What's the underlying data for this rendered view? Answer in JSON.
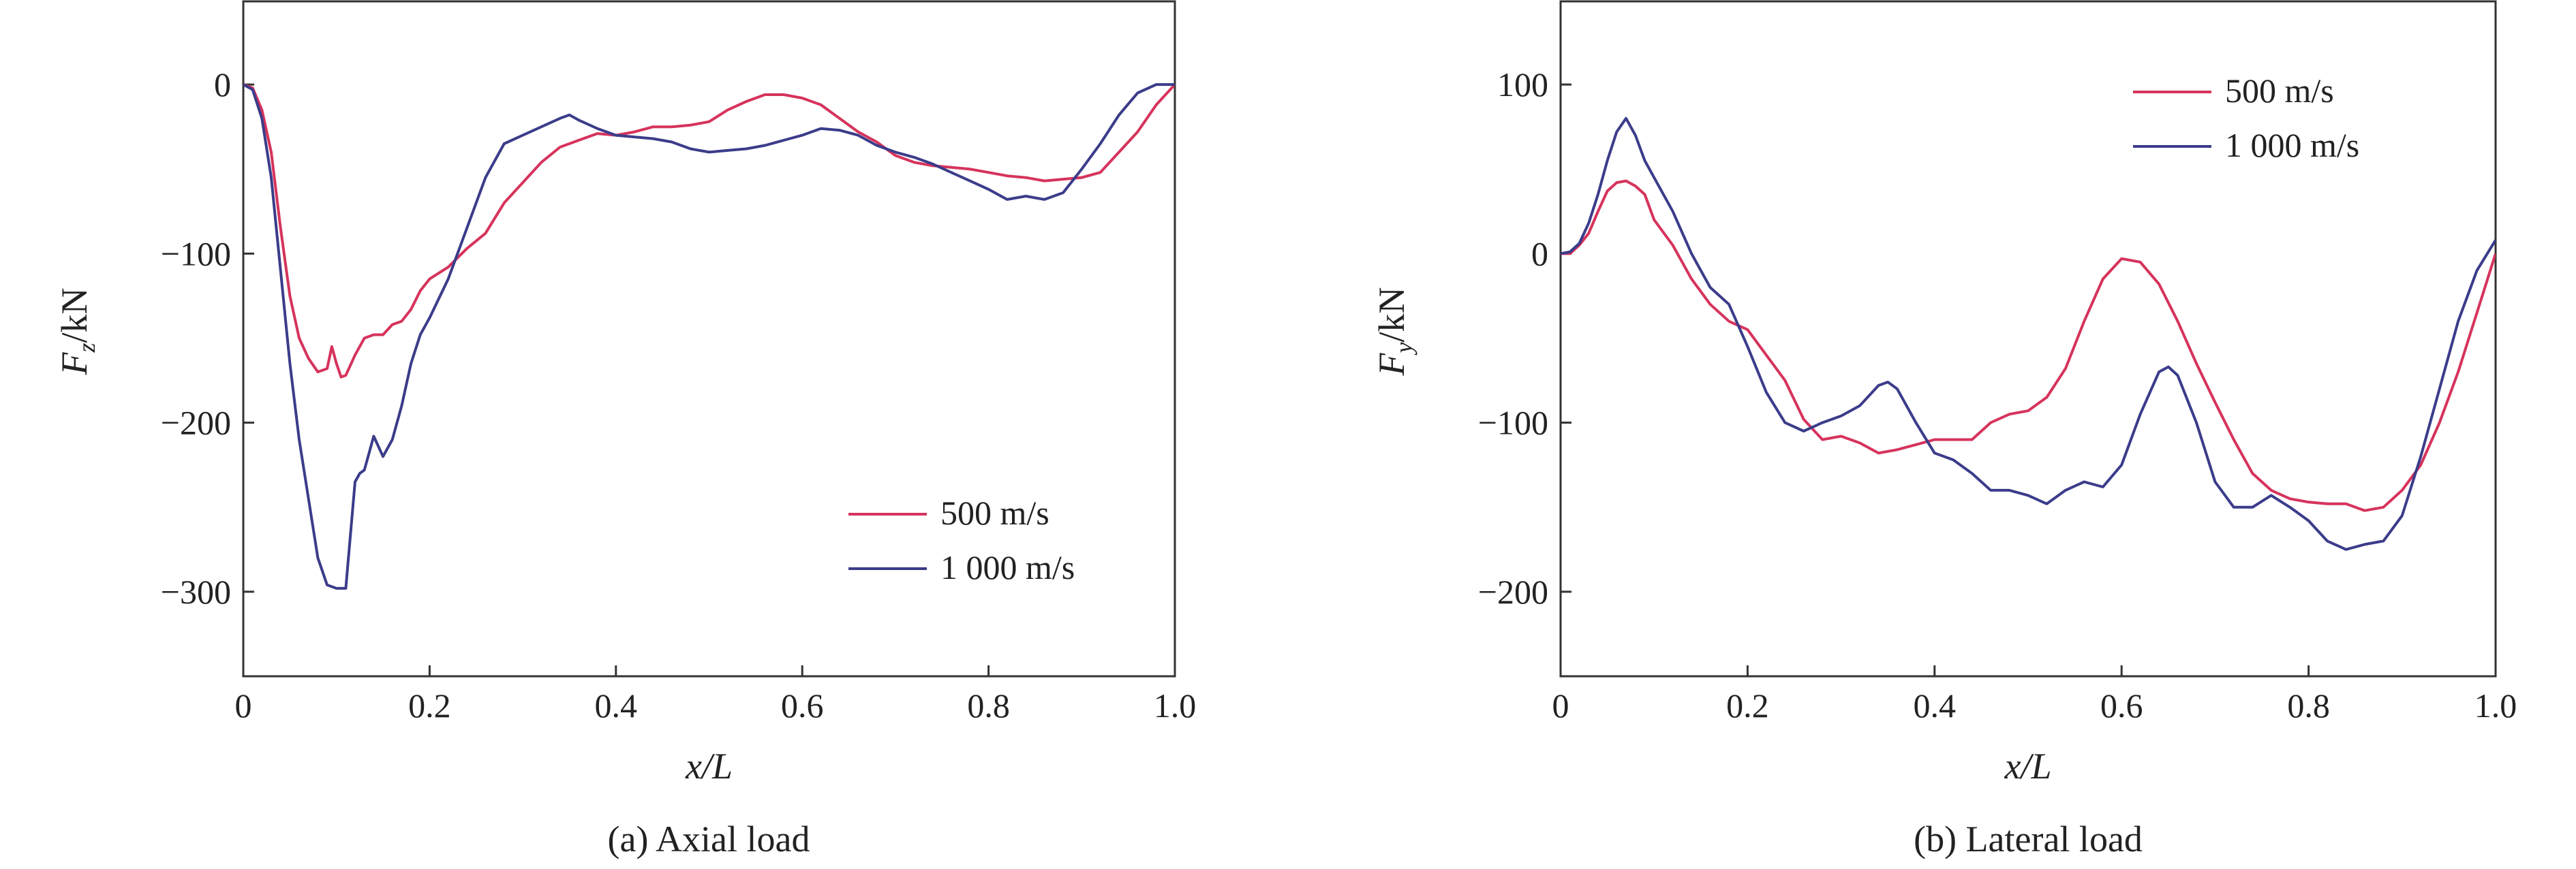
{
  "chart_data": [
    {
      "type": "line",
      "caption": "(a) Axial load",
      "xlabel": "x/L",
      "ylabel": "F_z/kN",
      "xlim": [
        0,
        1.0
      ],
      "ylim": [
        -350,
        50
      ],
      "xticks": [
        0,
        0.2,
        0.4,
        0.6,
        0.8,
        1.0
      ],
      "xtick_labels": [
        "0",
        "0.2",
        "0.4",
        "0.6",
        "0.8",
        "1.0"
      ],
      "yticks": [
        0,
        -100,
        -200,
        -300
      ],
      "ytick_labels": [
        "0",
        "−100",
        "−200",
        "−300"
      ],
      "grid": false,
      "legend_position": "lower-right",
      "series": [
        {
          "name": "500 m/s",
          "color": "#d6335c",
          "x": [
            0,
            0.01,
            0.02,
            0.03,
            0.04,
            0.05,
            0.06,
            0.07,
            0.08,
            0.09,
            0.095,
            0.1,
            0.105,
            0.11,
            0.12,
            0.13,
            0.14,
            0.15,
            0.16,
            0.17,
            0.18,
            0.19,
            0.2,
            0.22,
            0.24,
            0.26,
            0.28,
            0.3,
            0.32,
            0.34,
            0.36,
            0.38,
            0.4,
            0.42,
            0.44,
            0.46,
            0.48,
            0.5,
            0.52,
            0.54,
            0.56,
            0.58,
            0.6,
            0.62,
            0.64,
            0.66,
            0.68,
            0.7,
            0.72,
            0.74,
            0.76,
            0.78,
            0.8,
            0.82,
            0.84,
            0.86,
            0.88,
            0.9,
            0.92,
            0.94,
            0.96,
            0.98,
            1.0
          ],
          "y": [
            0,
            -2,
            -15,
            -40,
            -85,
            -125,
            -150,
            -162,
            -170,
            -168,
            -155,
            -165,
            -173,
            -172,
            -160,
            -150,
            -148,
            -148,
            -142,
            -140,
            -133,
            -122,
            -115,
            -108,
            -97,
            -88,
            -70,
            -58,
            -46,
            -37,
            -33,
            -29,
            -30,
            -28,
            -25,
            -25,
            -24,
            -22,
            -15,
            -10,
            -6,
            -6,
            -8,
            -12,
            -20,
            -28,
            -34,
            -42,
            -46,
            -48,
            -49,
            -50,
            -52,
            -54,
            -55,
            -57,
            -56,
            -55,
            -52,
            -40,
            -28,
            -12,
            0
          ]
        },
        {
          "name": "1 000 m/s",
          "color": "#3b3c8a",
          "x": [
            0,
            0.01,
            0.02,
            0.03,
            0.04,
            0.05,
            0.06,
            0.07,
            0.08,
            0.09,
            0.1,
            0.11,
            0.12,
            0.125,
            0.13,
            0.14,
            0.15,
            0.16,
            0.17,
            0.18,
            0.19,
            0.2,
            0.22,
            0.24,
            0.26,
            0.28,
            0.3,
            0.32,
            0.34,
            0.35,
            0.36,
            0.38,
            0.4,
            0.42,
            0.44,
            0.46,
            0.48,
            0.5,
            0.52,
            0.54,
            0.56,
            0.58,
            0.6,
            0.62,
            0.64,
            0.66,
            0.68,
            0.7,
            0.72,
            0.74,
            0.76,
            0.78,
            0.8,
            0.82,
            0.84,
            0.86,
            0.88,
            0.9,
            0.92,
            0.94,
            0.96,
            0.98,
            1.0
          ],
          "y": [
            0,
            -3,
            -20,
            -55,
            -110,
            -165,
            -210,
            -245,
            -280,
            -296,
            -298,
            -298,
            -235,
            -230,
            -228,
            -208,
            -220,
            -210,
            -190,
            -165,
            -148,
            -138,
            -115,
            -85,
            -55,
            -35,
            -30,
            -25,
            -20,
            -18,
            -21,
            -26,
            -30,
            -31,
            -32,
            -34,
            -38,
            -40,
            -39,
            -38,
            -36,
            -33,
            -30,
            -26,
            -27,
            -30,
            -36,
            -40,
            -43,
            -47,
            -52,
            -57,
            -62,
            -68,
            -66,
            -68,
            -64,
            -50,
            -35,
            -18,
            -5,
            0,
            0
          ]
        }
      ]
    },
    {
      "type": "line",
      "caption": "(b) Lateral load",
      "xlabel": "x/L",
      "ylabel": "F_y/kN",
      "xlim": [
        0,
        1.0
      ],
      "ylim": [
        -250,
        150
      ],
      "xticks": [
        0,
        0.2,
        0.4,
        0.6,
        0.8,
        1.0
      ],
      "xtick_labels": [
        "0",
        "0.2",
        "0.4",
        "0.6",
        "0.8",
        "1.0"
      ],
      "yticks": [
        100,
        0,
        -100,
        -200
      ],
      "ytick_labels": [
        "100",
        "0",
        "−100",
        "−200"
      ],
      "grid": false,
      "legend_position": "upper-right",
      "series": [
        {
          "name": "500 m/s",
          "color": "#d6335c",
          "x": [
            0,
            0.01,
            0.02,
            0.03,
            0.04,
            0.05,
            0.06,
            0.07,
            0.08,
            0.09,
            0.1,
            0.12,
            0.14,
            0.16,
            0.18,
            0.2,
            0.22,
            0.24,
            0.26,
            0.28,
            0.3,
            0.32,
            0.34,
            0.36,
            0.38,
            0.4,
            0.42,
            0.44,
            0.46,
            0.48,
            0.5,
            0.52,
            0.54,
            0.56,
            0.58,
            0.6,
            0.62,
            0.64,
            0.66,
            0.68,
            0.7,
            0.72,
            0.74,
            0.76,
            0.78,
            0.8,
            0.82,
            0.84,
            0.86,
            0.88,
            0.9,
            0.92,
            0.94,
            0.96,
            0.98,
            1.0
          ],
          "y": [
            0,
            0,
            5,
            12,
            25,
            37,
            42,
            43,
            40,
            35,
            20,
            5,
            -15,
            -30,
            -40,
            -45,
            -60,
            -75,
            -98,
            -110,
            -108,
            -112,
            -118,
            -116,
            -113,
            -110,
            -110,
            -110,
            -100,
            -95,
            -93,
            -85,
            -68,
            -40,
            -15,
            -3,
            -5,
            -18,
            -40,
            -65,
            -88,
            -110,
            -130,
            -140,
            -145,
            -147,
            -148,
            -148,
            -152,
            -150,
            -140,
            -125,
            -100,
            -70,
            -35,
            0
          ]
        },
        {
          "name": "1 000 m/s",
          "color": "#3b3c8a",
          "x": [
            0,
            0.01,
            0.02,
            0.03,
            0.04,
            0.05,
            0.06,
            0.07,
            0.08,
            0.09,
            0.1,
            0.12,
            0.14,
            0.16,
            0.18,
            0.2,
            0.22,
            0.24,
            0.26,
            0.28,
            0.3,
            0.32,
            0.34,
            0.35,
            0.36,
            0.38,
            0.4,
            0.42,
            0.44,
            0.46,
            0.48,
            0.5,
            0.52,
            0.54,
            0.56,
            0.58,
            0.6,
            0.62,
            0.64,
            0.65,
            0.66,
            0.68,
            0.7,
            0.72,
            0.74,
            0.76,
            0.78,
            0.8,
            0.82,
            0.84,
            0.86,
            0.88,
            0.9,
            0.92,
            0.94,
            0.96,
            0.98,
            1.0
          ],
          "y": [
            0,
            1,
            6,
            18,
            35,
            55,
            72,
            80,
            70,
            55,
            45,
            25,
            0,
            -20,
            -30,
            -55,
            -82,
            -100,
            -105,
            -100,
            -96,
            -90,
            -78,
            -76,
            -80,
            -100,
            -118,
            -122,
            -130,
            -140,
            -140,
            -143,
            -148,
            -140,
            -135,
            -138,
            -125,
            -95,
            -70,
            -67,
            -72,
            -100,
            -135,
            -150,
            -150,
            -143,
            -150,
            -158,
            -170,
            -175,
            -172,
            -170,
            -155,
            -120,
            -80,
            -40,
            -10,
            8
          ]
        }
      ]
    }
  ]
}
